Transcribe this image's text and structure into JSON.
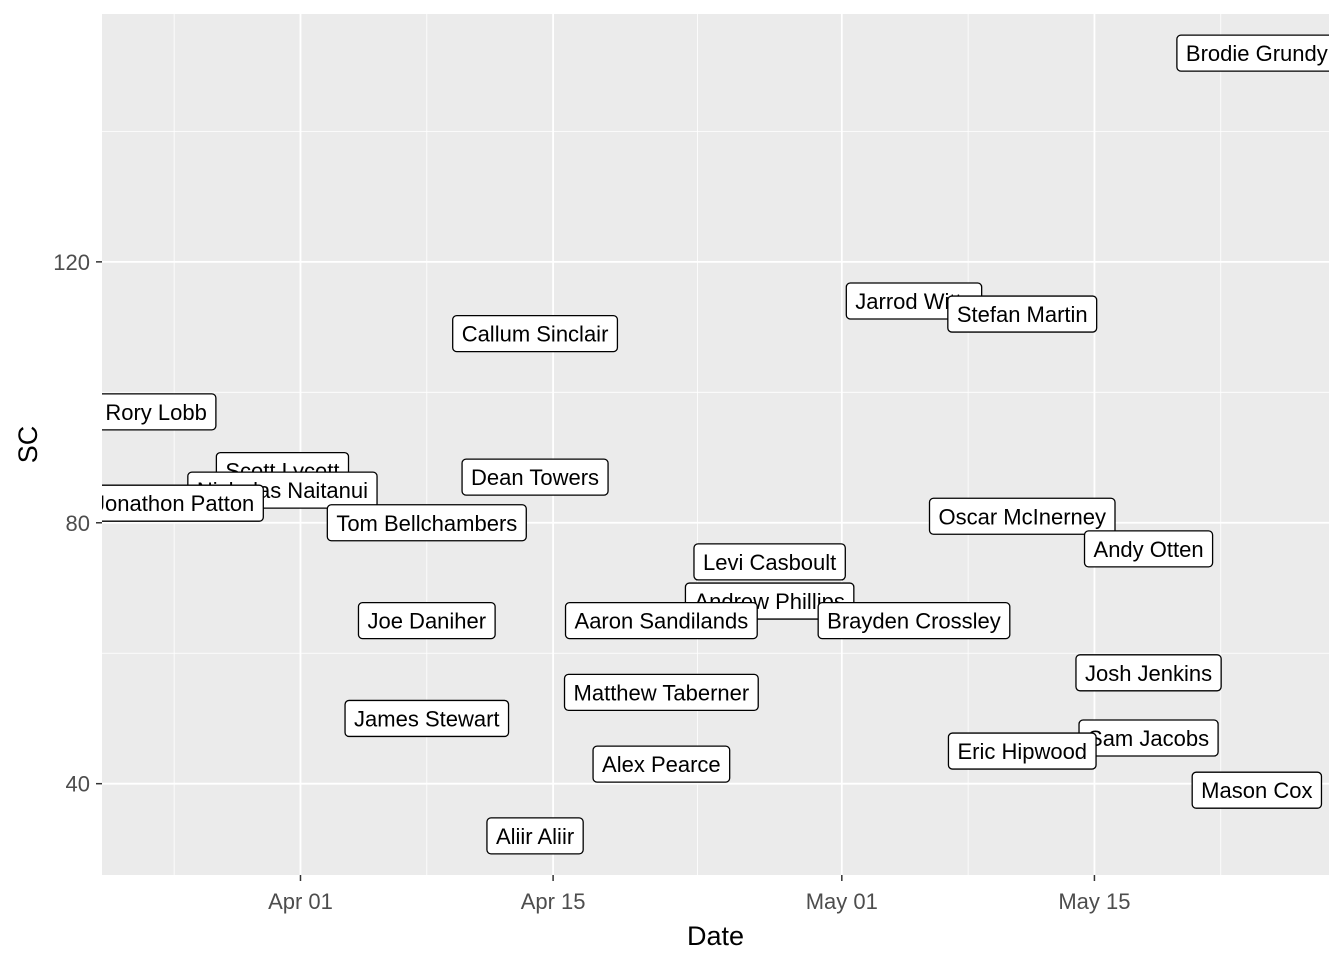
{
  "chart_data": {
    "type": "scatter",
    "title": "",
    "xlabel": "Date",
    "ylabel": "SC",
    "xlim": [
      "2021-03-21",
      "2021-05-28"
    ],
    "ylim": [
      26,
      158
    ],
    "grid": true,
    "x_ticks": [
      {
        "date": "2021-04-01",
        "label": "Apr 01"
      },
      {
        "date": "2021-04-15",
        "label": "Apr 15"
      },
      {
        "date": "2021-05-01",
        "label": "May 01"
      },
      {
        "date": "2021-05-15",
        "label": "May 15"
      }
    ],
    "y_ticks": [
      40,
      80,
      120
    ],
    "points": [
      {
        "label": "Brodie Grundy",
        "date": "2021-05-24",
        "sc": 152
      },
      {
        "label": "Jarrod Witts",
        "date": "2021-05-05",
        "sc": 114
      },
      {
        "label": "Stefan Martin",
        "date": "2021-05-11",
        "sc": 112
      },
      {
        "label": "Callum Sinclair",
        "date": "2021-04-14",
        "sc": 109
      },
      {
        "label": "Rory Lobb",
        "date": "2021-03-24",
        "sc": 97
      },
      {
        "label": "Scott Lycett",
        "date": "2021-03-31",
        "sc": 88
      },
      {
        "label": "Dean Towers",
        "date": "2021-04-14",
        "sc": 87
      },
      {
        "label": "Nicholas Naitanui",
        "date": "2021-03-31",
        "sc": 85
      },
      {
        "label": "Jonathon Patton",
        "date": "2021-03-25",
        "sc": 83
      },
      {
        "label": "Tom Bellchambers",
        "date": "2021-04-08",
        "sc": 80
      },
      {
        "label": "Oscar McInerney",
        "date": "2021-05-11",
        "sc": 81
      },
      {
        "label": "Andy Otten",
        "date": "2021-05-18",
        "sc": 76
      },
      {
        "label": "Levi Casboult",
        "date": "2021-04-27",
        "sc": 74
      },
      {
        "label": "Andrew Phillips",
        "date": "2021-04-27",
        "sc": 68
      },
      {
        "label": "Joe Daniher",
        "date": "2021-04-08",
        "sc": 65
      },
      {
        "label": "Aaron Sandilands",
        "date": "2021-04-21",
        "sc": 65
      },
      {
        "label": "Brayden Crossley",
        "date": "2021-05-05",
        "sc": 65
      },
      {
        "label": "Josh Jenkins",
        "date": "2021-05-18",
        "sc": 57
      },
      {
        "label": "Matthew Taberner",
        "date": "2021-04-21",
        "sc": 54
      },
      {
        "label": "James Stewart",
        "date": "2021-04-08",
        "sc": 50
      },
      {
        "label": "Sam Jacobs",
        "date": "2021-05-18",
        "sc": 47
      },
      {
        "label": "Eric Hipwood",
        "date": "2021-05-11",
        "sc": 45
      },
      {
        "label": "Alex Pearce",
        "date": "2021-04-21",
        "sc": 43
      },
      {
        "label": "Mason Cox",
        "date": "2021-05-24",
        "sc": 39
      },
      {
        "label": "Aliir Aliir",
        "date": "2021-04-14",
        "sc": 32
      }
    ]
  }
}
